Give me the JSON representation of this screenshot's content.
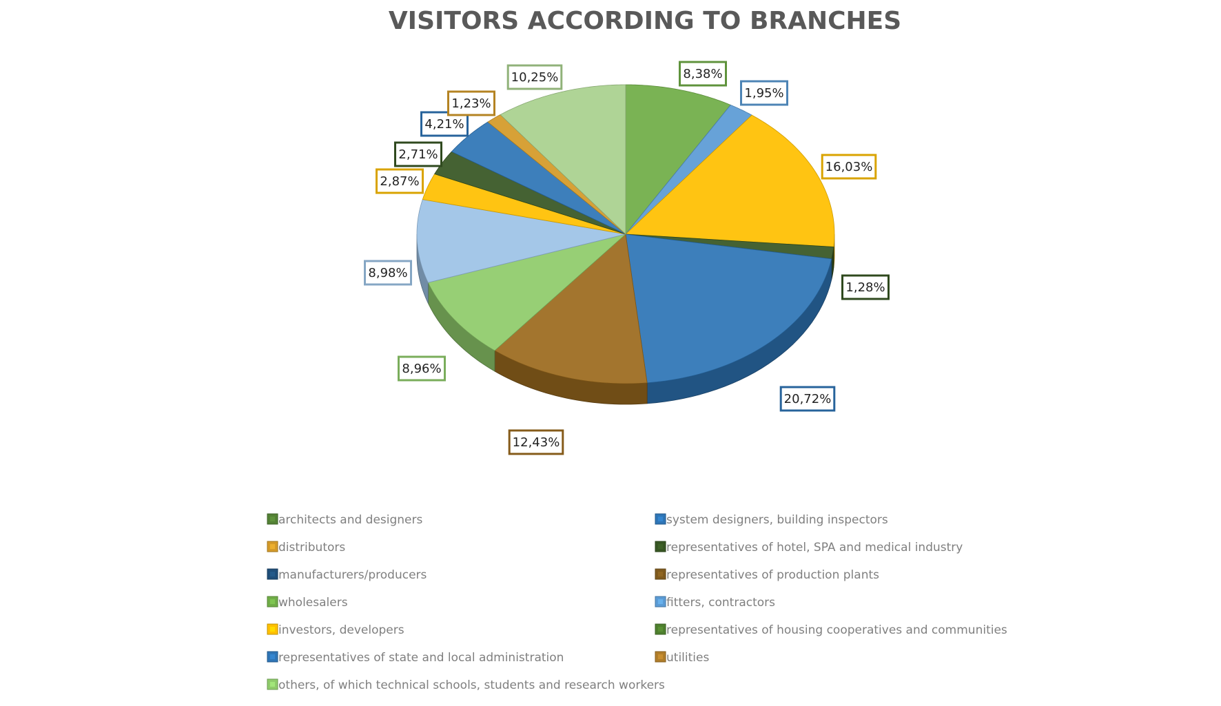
{
  "chart_data": {
    "type": "pie",
    "title": "VISITORS ACCORDING TO BRANCHES",
    "slices": [
      {
        "label": "architects and designers",
        "value": 8.38,
        "value_label": "8,38%",
        "color": "#70ad47"
      },
      {
        "label": "system designers, building inspectors",
        "value": 1.95,
        "value_label": "1,95%",
        "color": "#5b9bd5"
      },
      {
        "label": "investors, developers",
        "value": 16.03,
        "value_label": "16,03%",
        "color": "#ffc000"
      },
      {
        "label": "representatives of housing cooperatives and communities",
        "value": 1.28,
        "value_label": "1,28%",
        "color": "#375623"
      },
      {
        "label": "representatives of state and local administration",
        "value": 20.72,
        "value_label": "20,72%",
        "color": "#2e75b6"
      },
      {
        "label": "representatives of production plants",
        "value": 12.43,
        "value_label": "12,43%",
        "color": "#9c6b1e"
      },
      {
        "label": "wholesalers",
        "value": 8.96,
        "value_label": "8,96%",
        "color": "#8fcb6b"
      },
      {
        "label": "fitters, contractors",
        "value": 8.98,
        "value_label": "8,98%",
        "color": "#9dc3e6"
      },
      {
        "label": "investors, developers",
        "value": 2.87,
        "value_label": "2,87%",
        "color": "#ffc000"
      },
      {
        "label": "representatives of hotel, SPA and medical industry",
        "value": 2.71,
        "value_label": "2,71%",
        "color": "#375623"
      },
      {
        "label": "manufacturers/producers",
        "value": 4.21,
        "value_label": "4,21%",
        "color": "#2e75b6"
      },
      {
        "label": "distributors",
        "value": 1.23,
        "value_label": "1,23%",
        "color": "#d49a28"
      },
      {
        "label": "others, of which technical schools, students and research workers",
        "value": 10.25,
        "value_label": "10,25%",
        "color": "#a9d18e"
      }
    ],
    "legend": {
      "position": "bottom",
      "columns": 2,
      "items": [
        {
          "label": "architects and designers",
          "color": "#538135"
        },
        {
          "label": "system designers, building inspectors",
          "color": "#2e75b6"
        },
        {
          "label": "distributors",
          "color": "#d49a28"
        },
        {
          "label": "representatives of hotel, SPA and medical industry",
          "color": "#375623"
        },
        {
          "label": "manufacturers/producers",
          "color": "#1f4e79"
        },
        {
          "label": "representatives of production plants",
          "color": "#7f5a1e"
        },
        {
          "label": "wholesalers",
          "color": "#70ad47"
        },
        {
          "label": "fitters, contractors",
          "color": "#5b9bd5"
        },
        {
          "label": "investors, developers",
          "color": "#ffc000"
        },
        {
          "label": "representatives of housing cooperatives and communities",
          "color": "#4e7f2e"
        },
        {
          "label": "representatives of state and local administration",
          "color": "#2e75b6"
        },
        {
          "label": "utilities",
          "color": "#b07d2a"
        },
        {
          "label": "others, of which technical schools, students and research workers",
          "color": "#8fcb6b"
        }
      ]
    }
  }
}
